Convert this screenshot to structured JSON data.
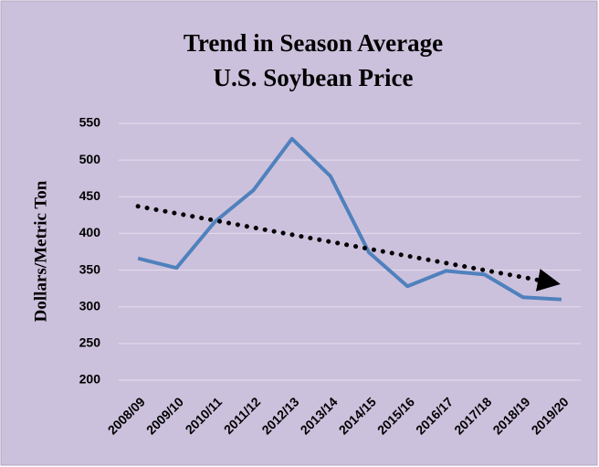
{
  "chart_data": {
    "type": "line",
    "title": [
      "Trend in Season Average",
      "U.S. Soybean Price"
    ],
    "y_label": "Dollars/Metric Ton",
    "categories": [
      "2008/09",
      "2009/10",
      "2010/11",
      "2011/12",
      "2012/13",
      "2013/14",
      "2014/15",
      "2015/16",
      "2016/17",
      "2017/18",
      "2018/19",
      "2019/20"
    ],
    "series": [
      {
        "color": "#4f81bd",
        "values": [
          366,
          353,
          416,
          459,
          529,
          478,
          374,
          328,
          349,
          344,
          313,
          310
        ]
      }
    ],
    "trend": {
      "color": "#000000",
      "values": [
        437,
        332
      ]
    },
    "ylim": [
      200,
      550
    ],
    "yticks": [
      200,
      250,
      300,
      350,
      400,
      450,
      500,
      550
    ],
    "grid": true
  }
}
